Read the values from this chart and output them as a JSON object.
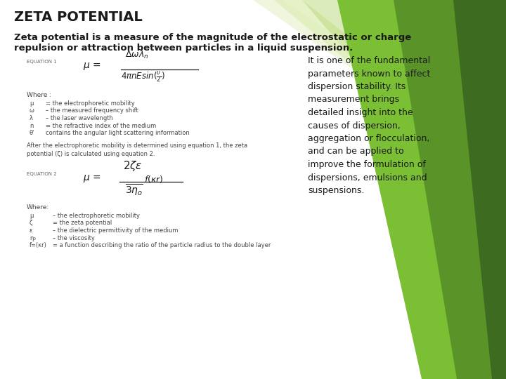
{
  "title": "ZETA POTENTIAL",
  "subtitle_line1": "Zeta potential is a measure of the magnitude of the electrostatic or charge",
  "subtitle_line2": "repulsion or attraction between particles in a liquid suspension.",
  "right_text": "It is one of the fundamental\nparameters known to affect\ndispersion stability. Its\nmeasurement brings\ndetailed insight into the\ncauses of dispersion,\naggregation or flocculation,\nand can be applied to\nimprove the formulation of\ndispersions, emulsions and\nsuspensions.",
  "eq1_label": "EQUATION 1",
  "where1": "Where :",
  "vars1": [
    [
      "μ",
      "= the electrophoretic mobility"
    ],
    [
      "ω",
      "– the measured frequency shift"
    ],
    [
      "λ",
      "– the laser wavelength"
    ],
    [
      "n",
      "= the refractive index of the medium"
    ],
    [
      "θ'",
      "contains the angular light scattering information"
    ]
  ],
  "transition_text": "After the electrophoretic mobility is determined using equation 1, the zeta\npotential (ζ) is calculated using equation 2.",
  "eq2_label": "EQUATION 2",
  "where2": "Where:",
  "vars2": [
    [
      "μ",
      "– the electrophoretic mobility"
    ],
    [
      "ζ",
      "= the zeta potential"
    ],
    [
      "ε",
      "– the dielectric permittivity of the medium"
    ],
    [
      "η₀",
      "– the viscosity"
    ],
    [
      "f=(κr)",
      "= a function describing the ratio of the particle radius to the double layer"
    ]
  ],
  "bg_color": "#ffffff",
  "title_color": "#1a1a1a",
  "subtitle_color": "#1a1a1a",
  "body_color": "#444444",
  "right_text_color": "#1a1a1a",
  "green_dark": "#3d6b1f",
  "green_mid": "#5a9428",
  "green_light": "#7bbf35",
  "green_pale": "#b8d878",
  "green_very_pale": "#d4e8a0"
}
